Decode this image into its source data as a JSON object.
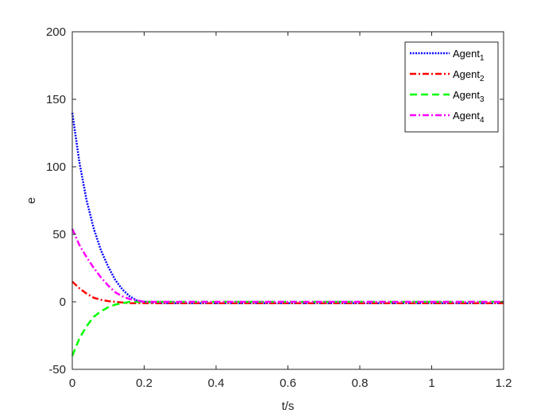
{
  "chart_data": {
    "type": "line",
    "title": "",
    "xlabel": "t/s",
    "ylabel": "e",
    "xlim": [
      0,
      1.2
    ],
    "ylim": [
      -50,
      200
    ],
    "xticks": [
      "0",
      "0.2",
      "0.4",
      "0.6",
      "0.8",
      "1",
      "1.2"
    ],
    "yticks": [
      "-50",
      "0",
      "50",
      "100",
      "150",
      "200"
    ],
    "grid": false,
    "legend_position": "top-right",
    "series": [
      {
        "name": "Agent",
        "subscript": "1",
        "color": "#0000ff",
        "style": "dotted",
        "x": [
          0,
          0.02,
          0.04,
          0.06,
          0.08,
          0.1,
          0.12,
          0.14,
          0.16,
          0.18,
          0.2,
          0.25,
          0.3,
          0.4,
          0.6,
          0.8,
          1.0,
          1.2
        ],
        "y": [
          140,
          103,
          75,
          54,
          38,
          26,
          16,
          9,
          4,
          1,
          0,
          -1,
          -1,
          -1,
          -1,
          -1,
          -1,
          -1
        ]
      },
      {
        "name": "Agent",
        "subscript": "2",
        "color": "#ff0000",
        "style": "dash-dot",
        "x": [
          0,
          0.02,
          0.04,
          0.06,
          0.08,
          0.1,
          0.12,
          0.14,
          0.16,
          0.2,
          0.3,
          0.4,
          0.6,
          0.8,
          1.0,
          1.2
        ],
        "y": [
          15,
          10,
          6,
          3,
          1.5,
          0.5,
          0,
          -0.5,
          -1,
          -1,
          -1,
          -1,
          -1,
          -1,
          -1,
          -1
        ]
      },
      {
        "name": "Agent",
        "subscript": "3",
        "color": "#00ff00",
        "style": "dashed",
        "x": [
          0,
          0.02,
          0.04,
          0.06,
          0.08,
          0.1,
          0.12,
          0.14,
          0.16,
          0.2,
          0.3,
          0.4,
          0.6,
          0.8,
          1.0,
          1.2
        ],
        "y": [
          -40,
          -27,
          -18,
          -11,
          -7,
          -4,
          -2,
          -1,
          0,
          0,
          0,
          0,
          0,
          0,
          0,
          0
        ]
      },
      {
        "name": "Agent",
        "subscript": "4",
        "color": "#ff00ff",
        "style": "dash-dot",
        "x": [
          0,
          0.02,
          0.04,
          0.06,
          0.08,
          0.1,
          0.12,
          0.14,
          0.16,
          0.18,
          0.2,
          0.3,
          0.4,
          0.6,
          0.8,
          1.0,
          1.2
        ],
        "y": [
          54,
          42,
          33,
          25,
          18,
          12,
          7,
          4,
          2,
          1,
          0,
          0,
          0,
          0,
          0,
          0,
          0
        ]
      }
    ]
  }
}
